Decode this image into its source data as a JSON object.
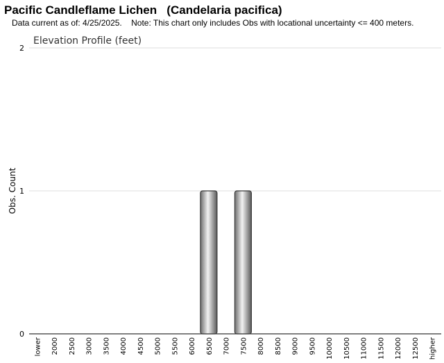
{
  "header": {
    "title": "Pacific Candleflame Lichen   (Candelaria pacifica)",
    "subtitle": "Data current as of: 4/25/2025.    Note: This chart only includes Obs with locational uncertainty <= 400 meters."
  },
  "chart_data": {
    "type": "bar",
    "title": "Elevation Profile (feet)",
    "xlabel": "",
    "ylabel": "Obs. Count",
    "ylim": [
      0,
      2
    ],
    "yticks": [
      0,
      1,
      2
    ],
    "grid": true,
    "legend": "none",
    "categories": [
      "lower",
      "2000",
      "2500",
      "3000",
      "3500",
      "4000",
      "4500",
      "5000",
      "5500",
      "6000",
      "6500",
      "7000",
      "7500",
      "8000",
      "8500",
      "9000",
      "9500",
      "10000",
      "10500",
      "11000",
      "11500",
      "12000",
      "12500",
      "higher"
    ],
    "values": [
      0,
      0,
      0,
      0,
      0,
      0,
      0,
      0,
      0,
      0,
      1,
      0,
      1,
      0,
      0,
      0,
      0,
      0,
      0,
      0,
      0,
      0,
      0,
      0
    ],
    "bar_color": "#a0a0a0"
  }
}
